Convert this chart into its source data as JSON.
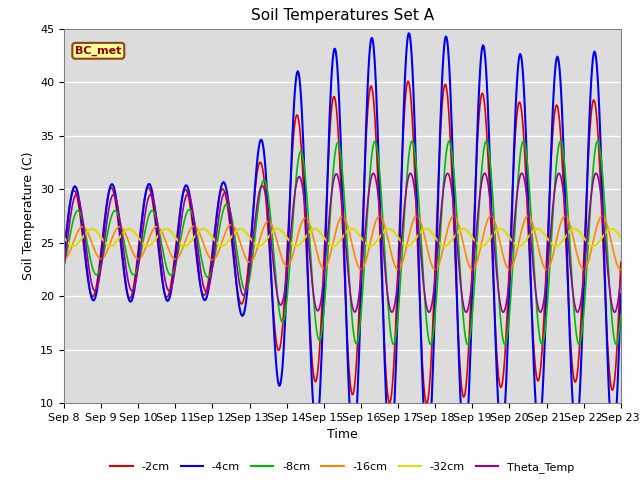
{
  "title": "Soil Temperatures Set A",
  "xlabel": "Time",
  "ylabel": "Soil Temperature (C)",
  "ylim": [
    10,
    45
  ],
  "xlim_days": [
    0,
    15
  ],
  "x_tick_labels": [
    "Sep 8",
    "Sep 9",
    "Sep 10",
    "Sep 11",
    "Sep 12",
    "Sep 13",
    "Sep 14",
    "Sep 15",
    "Sep 16",
    "Sep 17",
    "Sep 18",
    "Sep 19",
    "Sep 20",
    "Sep 21",
    "Sep 22",
    "Sep 23"
  ],
  "series": [
    {
      "label": "-2cm",
      "color": "#dd0000",
      "lw": 1.2
    },
    {
      "label": "-4cm",
      "color": "#0000ee",
      "lw": 1.5
    },
    {
      "label": "-8cm",
      "color": "#00bb00",
      "lw": 1.2
    },
    {
      "label": "-16cm",
      "color": "#ff8800",
      "lw": 1.2
    },
    {
      "label": "-32cm",
      "color": "#dddd00",
      "lw": 1.5
    },
    {
      "label": "Theta_Temp",
      "color": "#990099",
      "lw": 1.2
    }
  ],
  "legend_loc": "lower center",
  "legend_ncol": 6,
  "annotation_text": "BC_met",
  "bg_color": "#dcdcdc",
  "fig_bg": "#ffffff"
}
